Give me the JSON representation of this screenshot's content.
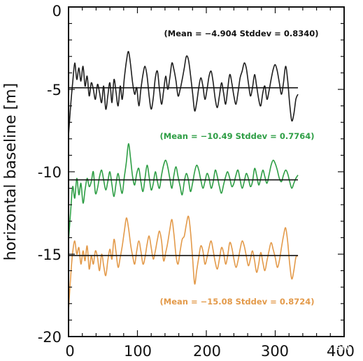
{
  "chart_data": {
    "type": "line",
    "title": "",
    "xlabel": "",
    "ylabel": "horizontal baseline [m]",
    "xlim": [
      0,
      400
    ],
    "ylim": [
      -20,
      0
    ],
    "x_ticks": [
      "0",
      "100",
      "200",
      "300",
      "400"
    ],
    "y_ticks": [
      "0",
      "-5",
      "-10",
      "-15",
      "-20"
    ],
    "grid": false,
    "series": [
      {
        "color": "#1f1f1f",
        "mean": -4.904,
        "annotation": "(Mean = −4.904 Stddev = 0.8340)",
        "annotation_color": "#111111",
        "x": [
          0,
          3,
          6,
          9,
          12,
          15,
          18,
          21,
          24,
          27,
          30,
          33,
          36,
          39,
          42,
          45,
          48,
          51,
          54,
          57,
          60,
          63,
          66,
          69,
          72,
          75,
          78,
          81,
          84,
          87,
          90,
          93,
          96,
          99,
          102,
          105,
          108,
          111,
          114,
          117,
          120,
          123,
          126,
          129,
          132,
          135,
          138,
          141,
          144,
          147,
          150,
          153,
          156,
          159,
          162,
          165,
          168,
          171,
          174,
          177,
          180,
          183,
          186,
          189,
          192,
          195,
          198,
          201,
          204,
          207,
          210,
          213,
          216,
          219,
          222,
          225,
          228,
          231,
          234,
          237,
          240,
          243,
          246,
          249,
          252,
          255,
          258,
          261,
          264,
          267,
          270,
          273,
          276,
          279,
          282,
          285,
          288,
          291,
          294,
          297,
          300,
          303,
          306,
          309,
          312,
          315,
          318,
          321,
          324,
          327,
          330,
          333
        ],
        "values": [
          -7.8,
          -6.0,
          -4.6,
          -3.4,
          -4.4,
          -3.7,
          -4.5,
          -3.6,
          -4.8,
          -4.2,
          -5.4,
          -4.6,
          -5.0,
          -5.6,
          -4.7,
          -5.2,
          -5.8,
          -4.8,
          -6.2,
          -5.4,
          -4.6,
          -5.8,
          -4.4,
          -5.2,
          -6.0,
          -4.8,
          -5.6,
          -4.3,
          -3.3,
          -2.7,
          -3.5,
          -4.6,
          -5.3,
          -4.9,
          -6.0,
          -5.0,
          -4.1,
          -3.6,
          -4.2,
          -5.4,
          -6.2,
          -5.5,
          -4.3,
          -3.9,
          -5.0,
          -5.9,
          -5.1,
          -4.2,
          -5.0,
          -4.3,
          -3.4,
          -3.8,
          -4.5,
          -5.4,
          -5.0,
          -4.4,
          -3.7,
          -3.0,
          -3.2,
          -4.1,
          -5.2,
          -6.3,
          -5.8,
          -4.9,
          -4.3,
          -4.8,
          -5.6,
          -5.0,
          -4.2,
          -3.9,
          -4.6,
          -5.6,
          -6.1,
          -5.4,
          -4.6,
          -5.2,
          -5.9,
          -5.0,
          -4.1,
          -4.6,
          -5.4,
          -5.9,
          -5.2,
          -4.3,
          -3.9,
          -3.4,
          -3.7,
          -4.6,
          -5.4,
          -4.9,
          -4.1,
          -4.8,
          -5.6,
          -6.0,
          -5.2,
          -4.8,
          -5.6,
          -5.1,
          -4.4,
          -3.8,
          -3.5,
          -3.9,
          -4.6,
          -5.3,
          -4.6,
          -3.6,
          -4.4,
          -5.9,
          -6.9,
          -6.5,
          -5.6,
          -5.3
        ]
      },
      {
        "color": "#2e9e45",
        "mean": -10.49,
        "annotation": "(Mean = −10.49 Stddev = 0.7764)",
        "annotation_color": "#2e9e45",
        "x": [
          0,
          3,
          6,
          9,
          12,
          15,
          18,
          21,
          24,
          27,
          30,
          33,
          36,
          39,
          42,
          45,
          48,
          51,
          54,
          57,
          60,
          63,
          66,
          69,
          72,
          75,
          78,
          81,
          84,
          87,
          90,
          93,
          96,
          99,
          102,
          105,
          108,
          111,
          114,
          117,
          120,
          123,
          126,
          129,
          132,
          135,
          138,
          141,
          144,
          147,
          150,
          153,
          156,
          159,
          162,
          165,
          168,
          171,
          174,
          177,
          180,
          183,
          186,
          189,
          192,
          195,
          198,
          201,
          204,
          207,
          210,
          213,
          216,
          219,
          222,
          225,
          228,
          231,
          234,
          237,
          240,
          243,
          246,
          249,
          252,
          255,
          258,
          261,
          264,
          267,
          270,
          273,
          276,
          279,
          282,
          285,
          288,
          291,
          294,
          297,
          300,
          303,
          306,
          309,
          312,
          315,
          318,
          321,
          324,
          327,
          330,
          333
        ],
        "values": [
          -14.2,
          -12.4,
          -10.9,
          -11.6,
          -10.4,
          -11.4,
          -10.7,
          -11.9,
          -11.1,
          -10.4,
          -10.9,
          -10.6,
          -10.0,
          -11.3,
          -11.0,
          -10.3,
          -9.9,
          -10.5,
          -11.1,
          -10.6,
          -10.0,
          -10.8,
          -11.5,
          -10.7,
          -10.1,
          -10.8,
          -11.3,
          -10.3,
          -9.4,
          -8.3,
          -9.2,
          -10.3,
          -10.8,
          -10.1,
          -9.8,
          -10.6,
          -11.2,
          -10.4,
          -9.6,
          -10.3,
          -11.1,
          -10.7,
          -10.0,
          -10.6,
          -11.0,
          -10.2,
          -9.6,
          -9.3,
          -9.7,
          -10.4,
          -11.0,
          -10.2,
          -9.7,
          -10.3,
          -10.9,
          -11.4,
          -10.6,
          -10.1,
          -10.5,
          -11.2,
          -10.7,
          -10.0,
          -9.6,
          -9.9,
          -10.5,
          -11.0,
          -10.6,
          -10.1,
          -10.4,
          -11.0,
          -10.6,
          -9.9,
          -10.3,
          -10.9,
          -11.3,
          -10.8,
          -10.3,
          -10.0,
          -10.4,
          -10.9,
          -10.7,
          -10.2,
          -9.9,
          -10.5,
          -11.0,
          -10.6,
          -10.1,
          -10.4,
          -10.9,
          -10.6,
          -9.8,
          -10.2,
          -10.8,
          -10.4,
          -9.9,
          -10.3,
          -10.7,
          -10.2,
          -9.6,
          -9.3,
          -9.5,
          -9.9,
          -10.4,
          -10.6,
          -10.2,
          -9.9,
          -10.1,
          -10.6,
          -11.0,
          -10.7,
          -10.4,
          -10.2
        ]
      },
      {
        "color": "#e39a4a",
        "mean": -15.08,
        "annotation": "(Mean = −15.08 Stddev = 0.8724)",
        "annotation_color": "#e39a4a",
        "x": [
          0,
          3,
          6,
          9,
          12,
          15,
          18,
          21,
          24,
          27,
          30,
          33,
          36,
          39,
          42,
          45,
          48,
          51,
          54,
          57,
          60,
          63,
          66,
          69,
          72,
          75,
          78,
          81,
          84,
          87,
          90,
          93,
          96,
          99,
          102,
          105,
          108,
          111,
          114,
          117,
          120,
          123,
          126,
          129,
          132,
          135,
          138,
          141,
          144,
          147,
          150,
          153,
          156,
          159,
          162,
          165,
          168,
          171,
          174,
          177,
          180,
          183,
          186,
          189,
          192,
          195,
          198,
          201,
          204,
          207,
          210,
          213,
          216,
          219,
          222,
          225,
          228,
          231,
          234,
          237,
          240,
          243,
          246,
          249,
          252,
          255,
          258,
          261,
          264,
          267,
          270,
          273,
          276,
          279,
          282,
          285,
          288,
          291,
          294,
          297,
          300,
          303,
          306,
          309,
          312,
          315,
          318,
          321,
          324,
          327,
          330,
          333
        ],
        "values": [
          -18.4,
          -16.4,
          -14.9,
          -14.2,
          -15.0,
          -14.6,
          -15.6,
          -14.8,
          -15.4,
          -14.5,
          -15.9,
          -15.1,
          -15.6,
          -14.8,
          -15.2,
          -16.0,
          -15.0,
          -15.7,
          -16.3,
          -15.4,
          -14.7,
          -15.3,
          -14.1,
          -14.9,
          -15.8,
          -15.2,
          -14.5,
          -13.6,
          -12.8,
          -13.4,
          -14.4,
          -15.1,
          -15.6,
          -14.8,
          -14.2,
          -14.8,
          -15.6,
          -15.2,
          -14.4,
          -13.9,
          -14.6,
          -15.3,
          -14.8,
          -14.1,
          -13.6,
          -14.2,
          -15.4,
          -14.9,
          -14.3,
          -13.5,
          -12.9,
          -13.8,
          -15.1,
          -15.6,
          -14.8,
          -14.1,
          -13.9,
          -13.2,
          -12.7,
          -13.6,
          -15.2,
          -16.8,
          -16.0,
          -15.2,
          -14.5,
          -14.8,
          -15.6,
          -15.2,
          -14.6,
          -14.2,
          -14.8,
          -15.5,
          -15.9,
          -15.3,
          -14.6,
          -14.9,
          -15.6,
          -15.1,
          -14.3,
          -14.6,
          -15.3,
          -15.8,
          -15.4,
          -14.7,
          -14.2,
          -14.5,
          -15.1,
          -15.7,
          -15.3,
          -14.8,
          -15.4,
          -16.1,
          -15.6,
          -14.9,
          -15.5,
          -16.0,
          -15.4,
          -14.8,
          -14.3,
          -14.7,
          -15.2,
          -15.8,
          -15.4,
          -14.6,
          -13.9,
          -13.4,
          -14.2,
          -15.6,
          -16.5,
          -16.0,
          -15.2,
          -15.1
        ]
      }
    ]
  },
  "watermark": "大家电视"
}
